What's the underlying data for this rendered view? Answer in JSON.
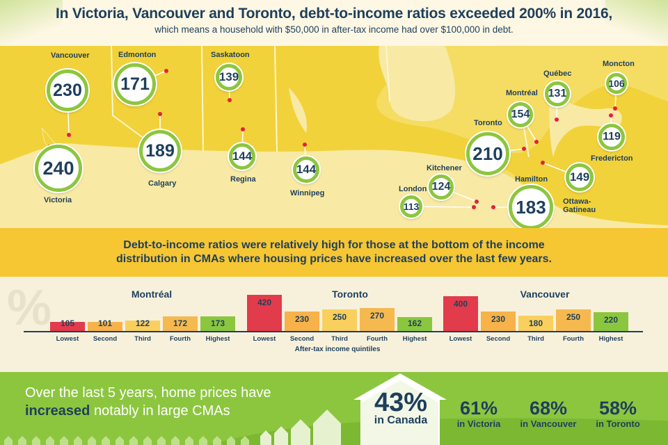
{
  "header": {
    "title": "In Victoria, Vancouver and Toronto, debt-to-income ratios exceeded 200% in 2016,",
    "subtitle": "which means a household with $50,000 in after-tax income had over $100,000 in debt."
  },
  "map": {
    "cities": [
      {
        "name": "Vancouver",
        "value": "230"
      },
      {
        "name": "Victoria",
        "value": "240"
      },
      {
        "name": "Edmonton",
        "value": "171"
      },
      {
        "name": "Calgary",
        "value": "189"
      },
      {
        "name": "Saskatoon",
        "value": "139"
      },
      {
        "name": "Regina",
        "value": "144"
      },
      {
        "name": "Winnipeg",
        "value": "144"
      },
      {
        "name": "Toronto",
        "value": "210"
      },
      {
        "name": "Kitchener",
        "value": "124"
      },
      {
        "name": "London",
        "value": "113"
      },
      {
        "name": "Hamilton",
        "value": "183"
      },
      {
        "name": "Montréal",
        "value": "154"
      },
      {
        "name": "Québec",
        "value": "131"
      },
      {
        "name": "Ottawa-Gatineau",
        "value": "149"
      },
      {
        "name": "Moncton",
        "value": "106"
      },
      {
        "name": "Fredericton",
        "value": "119"
      }
    ],
    "colors": {
      "land": "#f1d23a",
      "ring": "#8cc63f",
      "dot": "#e2213b",
      "ink": "#1e3f5c"
    }
  },
  "banner": {
    "line1": "Debt-to-income ratios were relatively high for those at the bottom of the income",
    "line2": "distribution in CMAs where housing prices have increased over the last few years."
  },
  "chart_data": [
    {
      "type": "bar",
      "title": "Montréal",
      "categories": [
        "Lowest",
        "Second",
        "Third",
        "Fourth",
        "Highest"
      ],
      "values": [
        105,
        101,
        122,
        172,
        173
      ],
      "xlabel": "",
      "ylabel": "",
      "ylim": [
        0,
        420
      ]
    },
    {
      "type": "bar",
      "title": "Toronto",
      "categories": [
        "Lowest",
        "Second",
        "Third",
        "Fourth",
        "Highest"
      ],
      "values": [
        420,
        230,
        250,
        270,
        162
      ],
      "xlabel": "After-tax income quintiles",
      "ylabel": "",
      "ylim": [
        0,
        420
      ]
    },
    {
      "type": "bar",
      "title": "Vancouver",
      "categories": [
        "Lowest",
        "Second",
        "Third",
        "Fourth",
        "Highest"
      ],
      "values": [
        400,
        230,
        180,
        250,
        220
      ],
      "xlabel": "",
      "ylabel": "",
      "ylim": [
        0,
        420
      ]
    }
  ],
  "bar_colors": [
    "#e23b4b",
    "#f7b24a",
    "#f9cf5e",
    "#f6b94f",
    "#8cc63f"
  ],
  "percent_symbol": "%",
  "footer": {
    "line1": "Over the last 5 years, home prices have",
    "line2_bold": "increased",
    "line2_rest": " notably in large CMAs",
    "canada_value": "43%",
    "canada_label": "in Canada",
    "stats": [
      {
        "value": "61%",
        "label": "in Victoria"
      },
      {
        "value": "68%",
        "label": "in Vancouver"
      },
      {
        "value": "58%",
        "label": "in Toronto"
      }
    ]
  }
}
